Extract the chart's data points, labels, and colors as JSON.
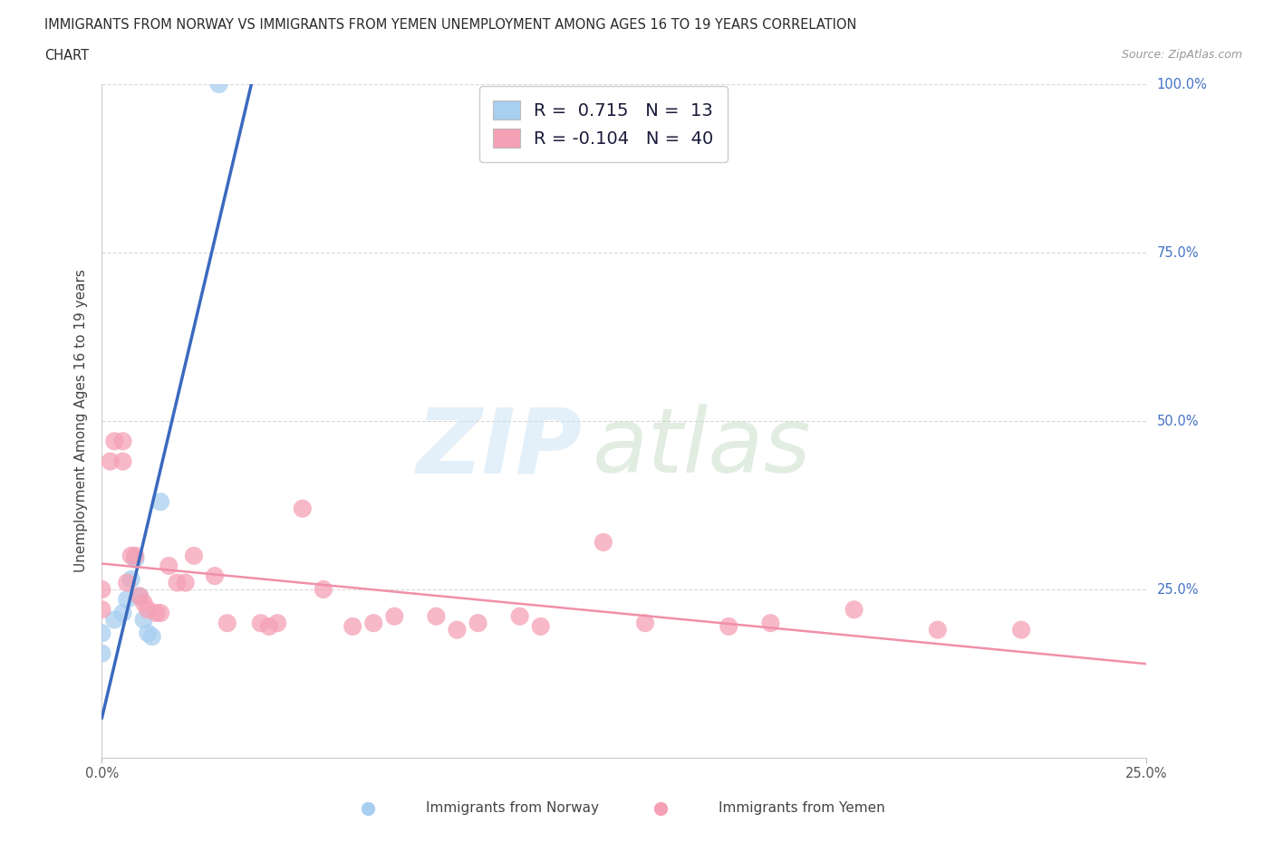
{
  "title_line1": "IMMIGRANTS FROM NORWAY VS IMMIGRANTS FROM YEMEN UNEMPLOYMENT AMONG AGES 16 TO 19 YEARS CORRELATION",
  "title_line2": "CHART",
  "source_text": "Source: ZipAtlas.com",
  "ylabel": "Unemployment Among Ages 16 to 19 years",
  "xlim": [
    0.0,
    0.25
  ],
  "ylim": [
    0.0,
    1.0
  ],
  "norway_R": 0.715,
  "norway_N": 13,
  "yemen_R": -0.104,
  "yemen_N": 40,
  "norway_color": "#a8cef0",
  "yemen_color": "#f5a0b5",
  "norway_line_color": "#3a6abf",
  "yemen_line_color": "#f090a8",
  "norway_points_x": [
    0.0,
    0.0,
    0.003,
    0.005,
    0.006,
    0.007,
    0.008,
    0.009,
    0.01,
    0.011,
    0.012,
    0.014,
    0.028
  ],
  "norway_points_y": [
    0.155,
    0.185,
    0.205,
    0.215,
    0.235,
    0.265,
    0.295,
    0.24,
    0.205,
    0.185,
    0.18,
    0.38,
    1.0
  ],
  "yemen_points_x": [
    0.0,
    0.0,
    0.002,
    0.003,
    0.005,
    0.005,
    0.006,
    0.007,
    0.008,
    0.009,
    0.01,
    0.011,
    0.013,
    0.014,
    0.016,
    0.018,
    0.02,
    0.022,
    0.027,
    0.03,
    0.038,
    0.04,
    0.042,
    0.048,
    0.053,
    0.06,
    0.065,
    0.07,
    0.08,
    0.085,
    0.09,
    0.1,
    0.105,
    0.12,
    0.13,
    0.15,
    0.16,
    0.18,
    0.2,
    0.22
  ],
  "yemen_points_y": [
    0.22,
    0.25,
    0.44,
    0.47,
    0.44,
    0.47,
    0.26,
    0.3,
    0.3,
    0.24,
    0.23,
    0.22,
    0.215,
    0.215,
    0.285,
    0.26,
    0.26,
    0.3,
    0.27,
    0.2,
    0.2,
    0.195,
    0.2,
    0.37,
    0.25,
    0.195,
    0.2,
    0.21,
    0.21,
    0.19,
    0.2,
    0.21,
    0.195,
    0.32,
    0.2,
    0.195,
    0.2,
    0.22,
    0.19,
    0.19
  ],
  "background_color": "#ffffff",
  "grid_color": "#d8d8d8"
}
